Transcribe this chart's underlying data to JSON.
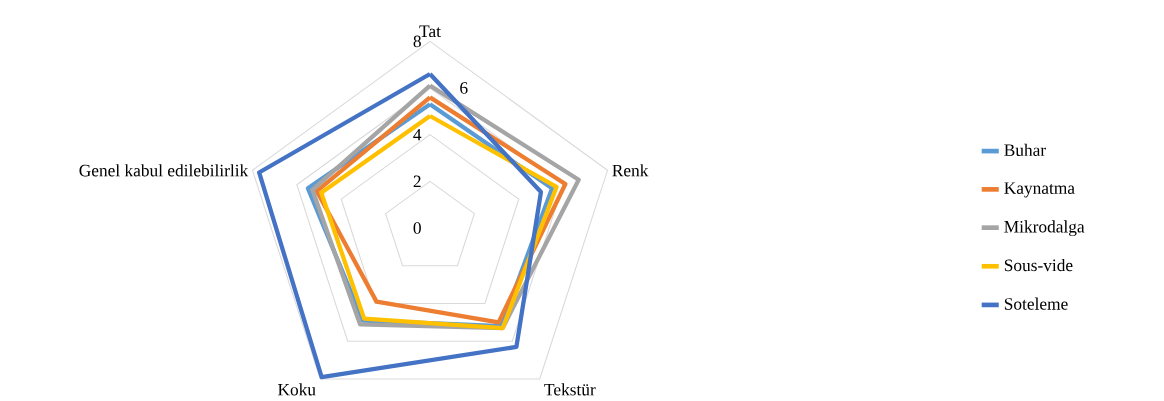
{
  "chart_data": {
    "type": "radar",
    "categories": [
      "Tat",
      "Renk",
      "Tekstür",
      "Koku",
      "Genel kabul edilebilirlik"
    ],
    "series": [
      {
        "name": "Buhar",
        "color": "#5b9bd5",
        "values": [
          5.3,
          5.5,
          5.2,
          4.9,
          5.5
        ]
      },
      {
        "name": "Kaynatma",
        "color": "#ed7d31",
        "values": [
          5.6,
          6.1,
          5.0,
          3.9,
          5.1
        ]
      },
      {
        "name": "Mikrodalga",
        "color": "#a5a5a5",
        "values": [
          6.1,
          6.7,
          5.3,
          5.1,
          5.3
        ]
      },
      {
        "name": "Sous-vide",
        "color": "#ffc000",
        "values": [
          4.8,
          5.7,
          5.3,
          4.8,
          4.9
        ]
      },
      {
        "name": "Soteleme",
        "color": "#4472c4",
        "values": [
          6.6,
          5.0,
          6.3,
          7.9,
          7.7
        ]
      }
    ],
    "ylim": [
      0,
      8
    ],
    "yticks": [
      0,
      2,
      4,
      6,
      8
    ],
    "grid": true,
    "legend": "right"
  }
}
